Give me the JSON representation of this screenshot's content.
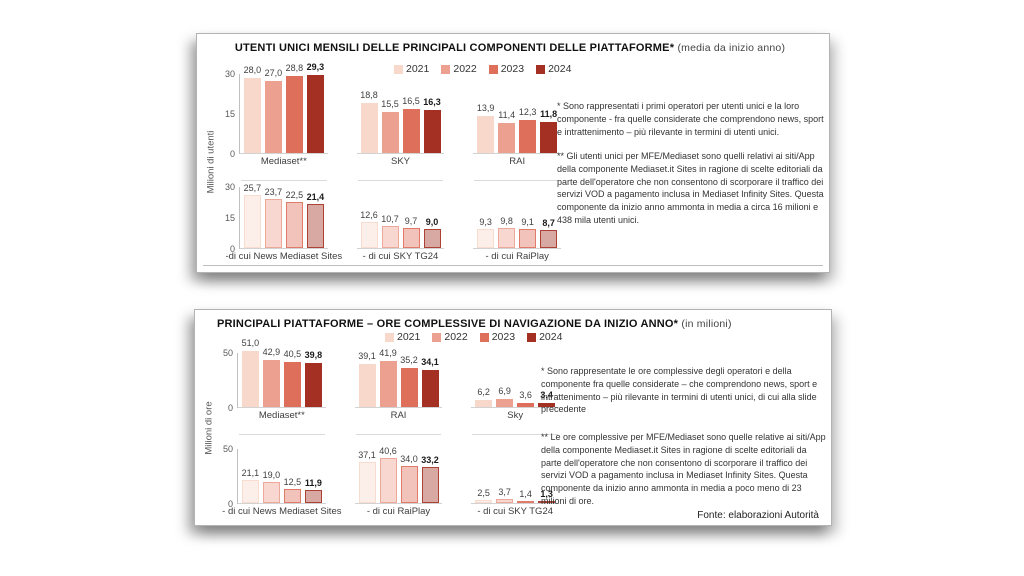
{
  "palette": {
    "2021": "#f7d8cb",
    "2022": "#eca08f",
    "2023": "#de6f5b",
    "2024": "#a33022"
  },
  "chart_data": [
    {
      "type": "bar",
      "title": "UTENTI UNICI MENSILI DELLE PRINCIPALI COMPONENTI DELLE PIATTAFORME*",
      "subtitle": "(media da inizio anno)",
      "ylabel": "Milioni di utenti",
      "legend": [
        "2021",
        "2022",
        "2023",
        "2024"
      ],
      "legend_position": "top",
      "grid": false,
      "rows": [
        {
          "ylim": [
            0,
            30
          ],
          "yticks": [
            30,
            15,
            0
          ],
          "muted": false,
          "groups": [
            {
              "label": "Mediaset**",
              "values": [
                28.0,
                27.0,
                28.8,
                29.3
              ]
            },
            {
              "label": "SKY",
              "values": [
                18.8,
                15.5,
                16.5,
                16.3
              ]
            },
            {
              "label": "RAI",
              "values": [
                13.9,
                11.4,
                12.3,
                11.8
              ]
            }
          ]
        },
        {
          "ylim": [
            0,
            30
          ],
          "yticks": [
            30,
            15,
            0
          ],
          "muted": true,
          "groups": [
            {
              "label": "-di cui News Mediaset Sites",
              "values": [
                25.7,
                23.7,
                22.5,
                21.4
              ]
            },
            {
              "label": "- di cui SKY TG24",
              "values": [
                12.6,
                10.7,
                9.7,
                9.0
              ]
            },
            {
              "label": "- di cui RaiPlay",
              "values": [
                9.3,
                9.8,
                9.1,
                8.7
              ]
            }
          ]
        }
      ],
      "footnotes": [
        "* Sono rappresentati i primi operatori per utenti unici e la loro componente - fra quelle considerate che comprendono news, sport e intrattenimento – più rilevante in termini di utenti unici.",
        "** Gli utenti unici per MFE/Mediaset sono quelli relativi ai siti/App della componente Mediaset.it Sites in ragione di scelte editoriali da parte dell'operatore che non consentono di scorporare il traffico dei servizi VOD a pagamento inclusa in Mediaset Infinity Sites. Questa componente da inizio anno ammonta in media a circa 16 milioni e 438 mila utenti unici."
      ]
    },
    {
      "type": "bar",
      "title": "PRINCIPALI PIATTAFORME – ORE COMPLESSIVE DI NAVIGAZIONE DA INIZIO ANNO*",
      "subtitle": "(in milioni)",
      "ylabel": "Milioni di ore",
      "legend": [
        "2021",
        "2022",
        "2023",
        "2024"
      ],
      "legend_position": "top",
      "grid": false,
      "rows": [
        {
          "ylim": [
            0,
            50
          ],
          "yticks": [
            50,
            0
          ],
          "muted": false,
          "groups": [
            {
              "label": "Mediaset**",
              "values": [
                51.0,
                42.9,
                40.5,
                39.8
              ]
            },
            {
              "label": "RAI",
              "values": [
                39.1,
                41.9,
                35.2,
                34.1
              ]
            },
            {
              "label": "Sky",
              "values": [
                6.2,
                6.9,
                3.6,
                3.4
              ]
            }
          ]
        },
        {
          "ylim": [
            0,
            50
          ],
          "yticks": [
            50,
            0
          ],
          "muted": true,
          "groups": [
            {
              "label": "- di cui News Mediaset Sites",
              "values": [
                21.1,
                19.0,
                12.5,
                11.9
              ]
            },
            {
              "label": "- di cui RaiPlay",
              "values": [
                37.1,
                40.6,
                34.0,
                33.2
              ]
            },
            {
              "label": "- di cui SKY TG24",
              "values": [
                2.5,
                3.7,
                1.4,
                1.3
              ]
            }
          ]
        }
      ],
      "footnotes": [
        "* Sono rappresentate le ore complessive degli operatori e della componente fra quelle considerate – che comprendono news, sport e intrattenimento – più rilevante in termini di utenti unici, di cui alla slide precedente",
        "** Le ore complessive per MFE/Mediaset sono quelle relative ai siti/App della componente Mediaset.it Sites in ragione di scelte editoriali da parte dell'operatore che non consentono di scorporare il traffico dei servizi VOD a pagamento inclusa in Mediaset Infinity Sites. Questa componente da inizio anno ammonta in media a poco meno di 23 milioni di ore."
      ],
      "source": "Fonte: elaborazioni Autorità"
    }
  ]
}
